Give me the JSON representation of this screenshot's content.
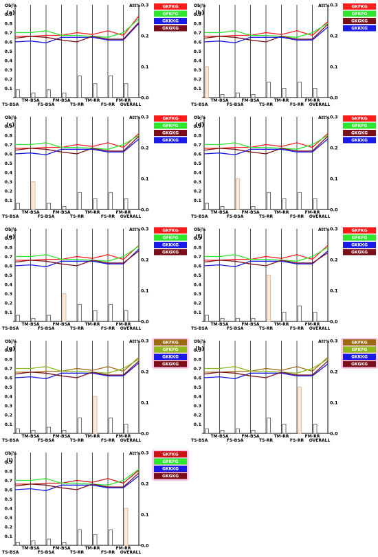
{
  "chart_data": [
    {
      "type": "line",
      "panel_label": "(a)",
      "left_axis_label": "Obj%",
      "right_axis_label": "Att%",
      "categories": [
        "TS-BSA",
        "TM-BSA",
        "FS-BSA",
        "FM-BSA",
        "TS-RR",
        "TM-RR",
        "FS-RR",
        "FM-RR",
        "OVERALL"
      ],
      "ylim_left": [
        0,
        1.0
      ],
      "ylim_right": [
        0,
        0.3
      ],
      "left_ticks": [
        "0.9",
        "0.8",
        "0.7",
        "0.6",
        "0.5",
        "0.4",
        "0.3",
        "0.2",
        "0.1"
      ],
      "right_ticks": [
        "0.3",
        "0.2",
        "0.1",
        "0.0"
      ],
      "series": [
        {
          "name": "GKFKG",
          "color": "#ff1a1a",
          "values": [
            0.66,
            0.66,
            0.67,
            0.67,
            0.7,
            0.68,
            0.72,
            0.67,
            0.88
          ]
        },
        {
          "name": "GFKFG",
          "color": "#2ee62e",
          "values": [
            0.7,
            0.7,
            0.72,
            0.67,
            0.67,
            0.66,
            0.65,
            0.7,
            0.85
          ]
        },
        {
          "name": "GKKKG",
          "color": "#1a1ae6",
          "values": [
            0.6,
            0.61,
            0.59,
            0.65,
            0.65,
            0.65,
            0.62,
            0.62,
            0.8
          ]
        },
        {
          "name": "GKGKG",
          "color": "#7a0f1a",
          "values": [
            0.64,
            0.66,
            0.65,
            0.62,
            0.6,
            0.66,
            0.63,
            0.63,
            0.81
          ]
        }
      ],
      "attention": [
        0.025,
        0.015,
        0.025,
        0.015,
        0.07,
        0.045,
        0.07,
        0.045,
        0
      ]
    },
    {
      "type": "line",
      "panel_label": "(b)",
      "left_axis_label": "Obj%",
      "right_axis_label": "Att%",
      "categories": [
        "TS-BSA",
        "TM-BSA",
        "FS-BSA",
        "FM-BSA",
        "TS-RR",
        "TM-RR",
        "FS-RR",
        "FM-RR",
        "OVERALL"
      ],
      "ylim_left": [
        0,
        1.0
      ],
      "ylim_right": [
        0,
        0.3
      ],
      "left_ticks": [
        "0.9",
        "0.8",
        "0.7",
        "0.6",
        "0.5",
        "0.4",
        "0.3",
        "0.2",
        "0.1"
      ],
      "right_ticks": [
        "0.3",
        "0.2",
        "0.1",
        "0.0"
      ],
      "series": [
        {
          "name": "GKFKG",
          "color": "#ff1a1a",
          "values": [
            0.66,
            0.66,
            0.67,
            0.67,
            0.7,
            0.68,
            0.72,
            0.67,
            0.82
          ]
        },
        {
          "name": "GFKFG",
          "color": "#2ee62e",
          "values": [
            0.7,
            0.7,
            0.72,
            0.67,
            0.67,
            0.66,
            0.65,
            0.7,
            0.8
          ]
        },
        {
          "name": "GKGKG",
          "color": "#7a0f1a",
          "values": [
            0.64,
            0.66,
            0.65,
            0.62,
            0.6,
            0.66,
            0.63,
            0.63,
            0.79
          ]
        },
        {
          "name": "GKKKG",
          "color": "#1a1ae6",
          "values": [
            0.6,
            0.61,
            0.59,
            0.65,
            0.65,
            0.65,
            0.62,
            0.62,
            0.76
          ]
        }
      ],
      "attention": [
        0.1,
        0.01,
        0.015,
        0.01,
        0.05,
        0.03,
        0.05,
        0.03,
        0
      ]
    },
    {
      "type": "line",
      "panel_label": "(c)",
      "left_axis_label": "Obj%",
      "right_axis_label": "Att%",
      "categories": [
        "TS-BSA",
        "TM-BSA",
        "FS-BSA",
        "FM-BSA",
        "TS-RR",
        "TM-RR",
        "FS-RR",
        "FM-RR",
        "OVERALL"
      ],
      "ylim_left": [
        0,
        1.0
      ],
      "ylim_right": [
        0,
        0.3
      ],
      "left_ticks": [
        "0.9",
        "0.8",
        "0.7",
        "0.6",
        "0.5",
        "0.4",
        "0.3",
        "0.2",
        "0.1"
      ],
      "right_ticks": [
        "0.3",
        "0.2",
        "0.1",
        "0.0"
      ],
      "series": [
        {
          "name": "GKFKG",
          "color": "#ff1a1a",
          "values": [
            0.66,
            0.66,
            0.67,
            0.67,
            0.7,
            0.68,
            0.72,
            0.67,
            0.82
          ]
        },
        {
          "name": "GFKFG",
          "color": "#2ee62e",
          "values": [
            0.7,
            0.7,
            0.72,
            0.67,
            0.67,
            0.66,
            0.65,
            0.7,
            0.8
          ]
        },
        {
          "name": "GKGKG",
          "color": "#7a0f1a",
          "values": [
            0.64,
            0.66,
            0.65,
            0.62,
            0.6,
            0.66,
            0.63,
            0.63,
            0.79
          ]
        },
        {
          "name": "GKKKG",
          "color": "#1a1ae6",
          "values": [
            0.6,
            0.61,
            0.59,
            0.65,
            0.65,
            0.65,
            0.62,
            0.62,
            0.76
          ]
        }
      ],
      "attention": [
        0.02,
        0.09,
        0.02,
        0.01,
        0.055,
        0.035,
        0.055,
        0.035,
        0
      ]
    },
    {
      "type": "line",
      "panel_label": "(d)",
      "left_axis_label": "Obj%",
      "right_axis_label": "Att%",
      "categories": [
        "TS-BSA",
        "TM-BSA",
        "FS-BSA",
        "FM-BSA",
        "TS-RR",
        "TM-RR",
        "FS-RR",
        "FM-RR",
        "OVERALL"
      ],
      "ylim_left": [
        0,
        1.0
      ],
      "ylim_right": [
        0,
        0.3
      ],
      "left_ticks": [
        "0.9",
        "0.8",
        "0.7",
        "0.6",
        "0.5",
        "0.4",
        "0.3",
        "0.2",
        "0.1"
      ],
      "right_ticks": [
        "0.3",
        "0.2",
        "0.1",
        "0.0"
      ],
      "series": [
        {
          "name": "GKFKG",
          "color": "#ff1a1a",
          "values": [
            0.66,
            0.66,
            0.67,
            0.67,
            0.7,
            0.68,
            0.72,
            0.67,
            0.82
          ]
        },
        {
          "name": "GFKFG",
          "color": "#2ee62e",
          "values": [
            0.7,
            0.7,
            0.72,
            0.67,
            0.67,
            0.66,
            0.65,
            0.7,
            0.8
          ]
        },
        {
          "name": "GKGKG",
          "color": "#7a0f1a",
          "values": [
            0.64,
            0.66,
            0.65,
            0.62,
            0.6,
            0.66,
            0.63,
            0.63,
            0.79
          ]
        },
        {
          "name": "GKKKG",
          "color": "#1a1ae6",
          "values": [
            0.6,
            0.61,
            0.59,
            0.65,
            0.65,
            0.65,
            0.62,
            0.62,
            0.76
          ]
        }
      ],
      "attention": [
        0.02,
        0.01,
        0.1,
        0.01,
        0.055,
        0.035,
        0.055,
        0.035,
        0
      ]
    },
    {
      "type": "line",
      "panel_label": "(e)",
      "left_axis_label": "Obj%",
      "right_axis_label": "Att%",
      "categories": [
        "TS-BSA",
        "TM-BSA",
        "FS-BSA",
        "FM-BSA",
        "TS-RR",
        "TM-RR",
        "FS-RR",
        "FM-RR",
        "OVERALL"
      ],
      "ylim_left": [
        0,
        1.0
      ],
      "ylim_right": [
        0,
        0.3
      ],
      "left_ticks": [
        "0.9",
        "0.8",
        "0.7",
        "0.6",
        "0.5",
        "0.4",
        "0.3",
        "0.2",
        "0.1"
      ],
      "right_ticks": [
        "0.3",
        "0.2",
        "0.1",
        "0.0"
      ],
      "series": [
        {
          "name": "GKFKG",
          "color": "#ff1a1a",
          "values": [
            0.66,
            0.66,
            0.67,
            0.67,
            0.7,
            0.68,
            0.72,
            0.67,
            0.82
          ]
        },
        {
          "name": "GFKFG",
          "color": "#2ee62e",
          "values": [
            0.7,
            0.7,
            0.72,
            0.67,
            0.67,
            0.66,
            0.65,
            0.7,
            0.81
          ]
        },
        {
          "name": "GKKKG",
          "color": "#1a1ae6",
          "values": [
            0.6,
            0.61,
            0.59,
            0.65,
            0.65,
            0.65,
            0.62,
            0.62,
            0.78
          ]
        },
        {
          "name": "GKGKG",
          "color": "#7a0f1a",
          "values": [
            0.64,
            0.66,
            0.65,
            0.62,
            0.6,
            0.66,
            0.63,
            0.63,
            0.76
          ]
        }
      ],
      "attention": [
        0.02,
        0.01,
        0.02,
        0.09,
        0.055,
        0.035,
        0.055,
        0.035,
        0
      ]
    },
    {
      "type": "line",
      "panel_label": "(f)",
      "left_axis_label": "Obj%",
      "right_axis_label": "Att%",
      "categories": [
        "TS-BSA",
        "TM-BSA",
        "FS-BSA",
        "FM-BSA",
        "TS-RR",
        "TM-RR",
        "FS-RR",
        "FM-RR",
        "OVERALL"
      ],
      "ylim_left": [
        0,
        1.0
      ],
      "ylim_right": [
        0,
        0.3
      ],
      "left_ticks": [
        "0.9",
        "0.8",
        "0.7",
        "0.6",
        "0.5",
        "0.4",
        "0.3",
        "0.2",
        "0.1"
      ],
      "right_ticks": [
        "0.3",
        "0.2",
        "0.1",
        "0.0"
      ],
      "series": [
        {
          "name": "GKFKG",
          "color": "#ff1a1a",
          "values": [
            0.66,
            0.66,
            0.67,
            0.67,
            0.7,
            0.68,
            0.72,
            0.67,
            0.82
          ]
        },
        {
          "name": "GFKFG",
          "color": "#2ee62e",
          "values": [
            0.7,
            0.7,
            0.72,
            0.67,
            0.67,
            0.66,
            0.65,
            0.7,
            0.8
          ]
        },
        {
          "name": "GKKKG",
          "color": "#1a1ae6",
          "values": [
            0.6,
            0.61,
            0.59,
            0.65,
            0.65,
            0.65,
            0.62,
            0.62,
            0.76
          ]
        },
        {
          "name": "GKGKG",
          "color": "#7a0f1a",
          "values": [
            0.64,
            0.66,
            0.65,
            0.62,
            0.6,
            0.66,
            0.63,
            0.63,
            0.74
          ]
        }
      ],
      "attention": [
        0.02,
        0.01,
        0.01,
        0.01,
        0.15,
        0.03,
        0.05,
        0.03,
        0
      ]
    },
    {
      "type": "line",
      "panel_label": "(g)",
      "left_axis_label": "Obj%",
      "right_axis_label": "Att%",
      "categories": [
        "TS-BSA",
        "TM-BSA",
        "FS-BSA",
        "FM-BSA",
        "TS-RR",
        "TM-RR",
        "FS-RR",
        "FM-RR",
        "OVERALL"
      ],
      "ylim_left": [
        0,
        1.0
      ],
      "ylim_right": [
        0,
        0.3
      ],
      "left_ticks": [
        "0.9",
        "0.8",
        "0.7",
        "0.6",
        "0.5",
        "0.4",
        "0.3",
        "0.2",
        "0.1"
      ],
      "right_ticks": [
        "0.3",
        "0.2",
        "0.1",
        "0.0"
      ],
      "series": [
        {
          "name": "GKFKG",
          "color": "#9c6a14",
          "values": [
            0.66,
            0.66,
            0.67,
            0.67,
            0.7,
            0.68,
            0.72,
            0.67,
            0.82
          ]
        },
        {
          "name": "GFKFG",
          "color": "#8fb81a",
          "values": [
            0.7,
            0.7,
            0.72,
            0.67,
            0.67,
            0.66,
            0.65,
            0.7,
            0.8
          ]
        },
        {
          "name": "GKKKG",
          "color": "#1a1ae6",
          "values": [
            0.6,
            0.61,
            0.59,
            0.65,
            0.65,
            0.65,
            0.62,
            0.62,
            0.76
          ]
        },
        {
          "name": "GKGKG",
          "color": "#7a0f1a",
          "values": [
            0.64,
            0.66,
            0.65,
            0.62,
            0.6,
            0.66,
            0.63,
            0.63,
            0.78
          ]
        }
      ],
      "attention": [
        0.015,
        0.01,
        0.02,
        0.01,
        0.05,
        0.12,
        0.05,
        0.03,
        0
      ]
    },
    {
      "type": "line",
      "panel_label": "(h)",
      "left_axis_label": "Obj%",
      "right_axis_label": "Att%",
      "categories": [
        "TS-BSA",
        "TM-BSA",
        "FS-BSA",
        "FM-BSA",
        "TS-RR",
        "TM-RR",
        "FS-RR",
        "FM-RR",
        "OVERALL"
      ],
      "ylim_left": [
        0,
        1.0
      ],
      "ylim_right": [
        0,
        0.3
      ],
      "left_ticks": [
        "0.9",
        "0.8",
        "0.7",
        "0.6",
        "0.5",
        "0.4",
        "0.3",
        "0.2",
        "0.1"
      ],
      "right_ticks": [
        "0.3",
        "0.2",
        "0.1",
        "0.0"
      ],
      "series": [
        {
          "name": "GKFKG",
          "color": "#9c6a14",
          "values": [
            0.66,
            0.66,
            0.67,
            0.67,
            0.7,
            0.68,
            0.72,
            0.67,
            0.82
          ]
        },
        {
          "name": "GFKFG",
          "color": "#8fb81a",
          "values": [
            0.7,
            0.7,
            0.72,
            0.67,
            0.67,
            0.66,
            0.65,
            0.7,
            0.8
          ]
        },
        {
          "name": "GKKKG",
          "color": "#1a1ae6",
          "values": [
            0.6,
            0.61,
            0.59,
            0.65,
            0.65,
            0.65,
            0.62,
            0.62,
            0.75
          ]
        },
        {
          "name": "GKGKG",
          "color": "#7a0f1a",
          "values": [
            0.64,
            0.66,
            0.65,
            0.62,
            0.6,
            0.66,
            0.63,
            0.63,
            0.78
          ]
        }
      ],
      "attention": [
        0.015,
        0.01,
        0.015,
        0.01,
        0.05,
        0.03,
        0.15,
        0.03,
        0
      ]
    },
    {
      "type": "line",
      "panel_label": "(i)",
      "left_axis_label": "Obj%",
      "right_axis_label": "Att%",
      "categories": [
        "TS-BSA",
        "TM-BSA",
        "FS-BSA",
        "FM-BSA",
        "TS-RR",
        "TM-RR",
        "FS-RR",
        "FM-RR",
        "OVERALL"
      ],
      "ylim_left": [
        0,
        1.0
      ],
      "ylim_right": [
        0,
        0.3
      ],
      "left_ticks": [
        "0.9",
        "0.8",
        "0.7",
        "0.6",
        "0.5",
        "0.4",
        "0.3",
        "0.2",
        "0.1"
      ],
      "right_ticks": [
        "0.3",
        "0.2",
        "0.1",
        "0.0"
      ],
      "series": [
        {
          "name": "GKFKG",
          "color": "#c81414",
          "values": [
            0.66,
            0.66,
            0.67,
            0.67,
            0.7,
            0.68,
            0.72,
            0.67,
            0.81
          ]
        },
        {
          "name": "GFKFG",
          "color": "#2ee62e",
          "values": [
            0.7,
            0.7,
            0.72,
            0.67,
            0.67,
            0.66,
            0.65,
            0.7,
            0.82
          ]
        },
        {
          "name": "GKKKG",
          "color": "#1a1ae6",
          "values": [
            0.6,
            0.61,
            0.59,
            0.65,
            0.65,
            0.65,
            0.62,
            0.62,
            0.75
          ]
        },
        {
          "name": "GKGKG",
          "color": "#7a0f1a",
          "values": [
            0.64,
            0.66,
            0.65,
            0.62,
            0.6,
            0.66,
            0.63,
            0.63,
            0.78
          ]
        }
      ],
      "attention": [
        0.01,
        0.015,
        0.02,
        0.01,
        0.05,
        0.035,
        0.05,
        0.12,
        0
      ]
    }
  ]
}
